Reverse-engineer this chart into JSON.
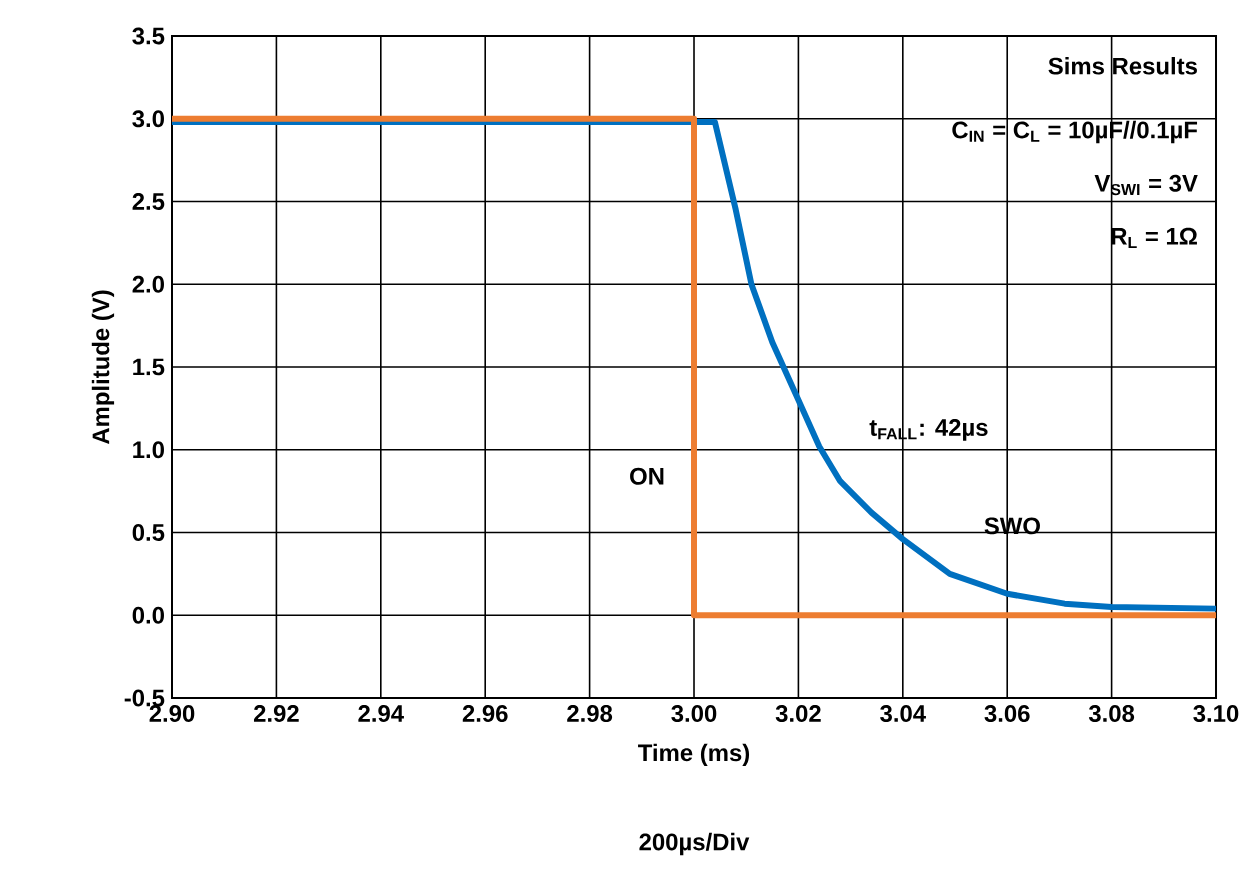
{
  "chart_data": {
    "type": "line",
    "xlabel": "Time (ms)",
    "ylabel": "Amplitude (V)",
    "series": [
      {
        "name": "SWO",
        "color": "#0070c0",
        "x": [
          2.9,
          3.0,
          3.004,
          3.008,
          3.011,
          3.015,
          3.02,
          3.024,
          3.028,
          3.034,
          3.04,
          3.049,
          3.06,
          3.071,
          3.08,
          3.1
        ],
        "values": [
          2.98,
          2.98,
          2.98,
          2.45,
          2.0,
          1.65,
          1.3,
          1.02,
          0.81,
          0.62,
          0.46,
          0.25,
          0.13,
          0.07,
          0.05,
          0.04
        ]
      },
      {
        "name": "ON",
        "color": "#ed7d31",
        "x": [
          2.9,
          3.0,
          3.0,
          3.1
        ],
        "values": [
          3.0,
          3.0,
          0.0,
          0.0
        ]
      }
    ],
    "xlim": [
      2.9,
      3.1
    ],
    "ylim": [
      -0.5,
      3.5
    ],
    "xticks": [
      {
        "value": 2.9,
        "label": "2.90"
      },
      {
        "value": 2.92,
        "label": "2.92"
      },
      {
        "value": 2.94,
        "label": "2.94"
      },
      {
        "value": 2.96,
        "label": "2.96"
      },
      {
        "value": 2.98,
        "label": "2.98"
      },
      {
        "value": 3.0,
        "label": "3.00"
      },
      {
        "value": 3.02,
        "label": "3.02"
      },
      {
        "value": 3.04,
        "label": "3.04"
      },
      {
        "value": 3.06,
        "label": "3.06"
      },
      {
        "value": 3.08,
        "label": "3.08"
      },
      {
        "value": 3.1,
        "label": "3.10"
      }
    ],
    "yticks": [
      {
        "value": -0.5,
        "label": "-0.5"
      },
      {
        "value": 0,
        "label": "0.0"
      },
      {
        "value": 0.5,
        "label": "0.5"
      },
      {
        "value": 1,
        "label": "1.0"
      },
      {
        "value": 1.5,
        "label": "1.5"
      },
      {
        "value": 2,
        "label": "2.0"
      },
      {
        "value": 2.5,
        "label": "2.5"
      },
      {
        "value": 3,
        "label": "3.0"
      },
      {
        "value": 3.5,
        "label": "3.5"
      }
    ],
    "annotations": [
      "Sims Results",
      "C$_{IN}$ = C$_{L}$ = 10µF//0.1µF",
      "V$_{SWI}$ = 3V",
      "R$_{L}$ = 1Ω",
      "t$_{FALL}$: 42µs",
      "200µs/Div"
    ],
    "grid": true,
    "legend": false,
    "marker": "none",
    "line_style": "solid"
  }
}
